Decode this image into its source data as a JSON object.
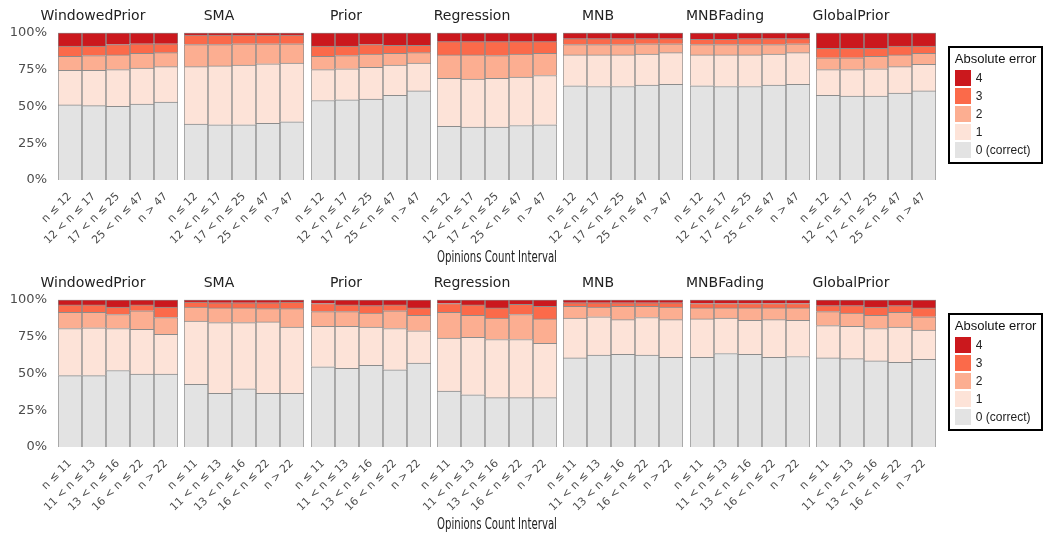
{
  "chart_data": [
    {
      "type": "bar",
      "title": "WindowedPrior",
      "stacked": true,
      "categories": [
        "n ≤ 12",
        "12 < n ≤ 17",
        "17 < n ≤ 25",
        "25 < n ≤ 47",
        "n > 47"
      ],
      "ylim": [
        0,
        100
      ],
      "yticks": [
        {
          "value": 0,
          "label": "0%"
        },
        {
          "value": 25,
          "label": "25%"
        },
        {
          "value": 50,
          "label": "50%"
        },
        {
          "value": 75,
          "label": "75%"
        },
        {
          "value": 100,
          "label": "100%"
        }
      ],
      "series": [
        {
          "color": "#e3e3e3",
          "values": [
            51,
            50.5,
            50,
            51.5,
            53
          ]
        },
        {
          "color": "#fde3d8",
          "values": [
            23.5,
            24,
            25,
            24.5,
            24
          ]
        },
        {
          "color": "#fcae91",
          "values": [
            9.5,
            10,
            10,
            10,
            9.5
          ]
        },
        {
          "color": "#fb6a4a",
          "values": [
            7,
            6.5,
            7,
            6.5,
            6
          ]
        },
        {
          "color": "#cb181d",
          "values": [
            9,
            9,
            8,
            7.5,
            7.5
          ]
        }
      ]
    },
    {
      "type": "bar",
      "title": "SMA",
      "stacked": true,
      "tick_labels": "x",
      "categories": [
        "n ≤ 12",
        "12 < n ≤ 17",
        "17 < n ≤ 25",
        "25 < n ≤ 47",
        "n > 47"
      ],
      "ylim": [
        0,
        100
      ],
      "series": [
        {
          "color": "#e3e3e3",
          "values": [
            38,
            37.5,
            37.5,
            38.5,
            39.5
          ]
        },
        {
          "color": "#fde3d8",
          "values": [
            39,
            40,
            40.5,
            40.5,
            40
          ]
        },
        {
          "color": "#fcae91",
          "values": [
            15,
            14.5,
            14.5,
            13.5,
            13
          ]
        },
        {
          "color": "#fb6a4a",
          "values": [
            6.5,
            6.5,
            6,
            6,
            6
          ]
        },
        {
          "color": "#cb181d",
          "values": [
            1.5,
            1.5,
            1.5,
            1.5,
            1.5
          ]
        }
      ]
    },
    {
      "type": "bar",
      "title": "Prior",
      "stacked": true,
      "tick_labels": "x",
      "categories": [
        "n ≤ 12",
        "12 < n ≤ 17",
        "17 < n ≤ 25",
        "25 < n ≤ 47",
        "n > 47"
      ],
      "ylim": [
        0,
        100
      ],
      "series": [
        {
          "color": "#e3e3e3",
          "values": [
            54,
            54.5,
            55,
            57.5,
            60.5
          ]
        },
        {
          "color": "#fde3d8",
          "values": [
            21,
            21,
            21.5,
            20.5,
            19
          ]
        },
        {
          "color": "#fcae91",
          "values": [
            9,
            9,
            9,
            8,
            7
          ]
        },
        {
          "color": "#fb6a4a",
          "values": [
            7,
            6.5,
            6.5,
            5.5,
            5
          ]
        },
        {
          "color": "#cb181d",
          "values": [
            9,
            9,
            8,
            8.5,
            8.5
          ]
        }
      ]
    },
    {
      "type": "bar",
      "title": "Regression",
      "xlabel": "Opinions Count Interval",
      "stacked": true,
      "tick_labels": "x",
      "categories": [
        "n ≤ 12",
        "12 < n ≤ 17",
        "17 < n ≤ 25",
        "25 < n ≤ 47",
        "n > 47"
      ],
      "ylim": [
        0,
        100
      ],
      "series": [
        {
          "color": "#e3e3e3",
          "values": [
            36.5,
            36,
            36,
            37,
            37.5
          ]
        },
        {
          "color": "#fde3d8",
          "values": [
            32.5,
            32.5,
            33,
            33,
            33.5
          ]
        },
        {
          "color": "#fcae91",
          "values": [
            16,
            16.5,
            15.5,
            15.5,
            15
          ]
        },
        {
          "color": "#fb6a4a",
          "values": [
            9,
            9,
            9.5,
            8.5,
            8
          ]
        },
        {
          "color": "#cb181d",
          "values": [
            6,
            6,
            6,
            6,
            6
          ]
        }
      ]
    },
    {
      "type": "bar",
      "title": "MNB",
      "stacked": true,
      "tick_labels": "x",
      "categories": [
        "n ≤ 12",
        "12 < n ≤ 17",
        "17 < n ≤ 25",
        "25 < n ≤ 47",
        "n > 47"
      ],
      "ylim": [
        0,
        100
      ],
      "series": [
        {
          "color": "#e3e3e3",
          "values": [
            64,
            63.5,
            63.5,
            64.5,
            65
          ]
        },
        {
          "color": "#fde3d8",
          "values": [
            21,
            21.5,
            21.5,
            21,
            21.5
          ]
        },
        {
          "color": "#fcae91",
          "values": [
            7,
            7,
            7,
            7,
            6
          ]
        },
        {
          "color": "#fb6a4a",
          "values": [
            4,
            4,
            4,
            3.5,
            3.5
          ]
        },
        {
          "color": "#cb181d",
          "values": [
            4,
            4,
            4,
            4,
            4
          ]
        }
      ]
    },
    {
      "type": "bar",
      "title": "MNBFading",
      "stacked": true,
      "tick_labels": "x",
      "categories": [
        "n ≤ 12",
        "12 < n ≤ 17",
        "17 < n ≤ 25",
        "25 < n ≤ 47",
        "n > 47"
      ],
      "ylim": [
        0,
        100
      ],
      "series": [
        {
          "color": "#e3e3e3",
          "values": [
            64,
            63.5,
            63.5,
            64.5,
            65
          ]
        },
        {
          "color": "#fde3d8",
          "values": [
            21,
            21.5,
            21.5,
            21,
            21.5
          ]
        },
        {
          "color": "#fcae91",
          "values": [
            7,
            7,
            7,
            6.5,
            6
          ]
        },
        {
          "color": "#fb6a4a",
          "values": [
            3.5,
            3.5,
            4,
            4,
            3.5
          ]
        },
        {
          "color": "#cb181d",
          "values": [
            4.5,
            4.5,
            4,
            4,
            4
          ]
        }
      ]
    },
    {
      "type": "bar",
      "title": "GlobalPrior",
      "legend": "right",
      "legend_title": "Absolute error",
      "stacked": true,
      "tick_labels": "x",
      "categories": [
        "n ≤ 12",
        "12 < n ≤ 17",
        "17 < n ≤ 25",
        "25 < n ≤ 47",
        "n > 47"
      ],
      "ylim": [
        0,
        100
      ],
      "series": [
        {
          "name": "0 (correct)",
          "color": "#e3e3e3",
          "values": [
            57.5,
            57,
            57,
            59,
            60.5
          ]
        },
        {
          "name": "1",
          "color": "#fde3d8",
          "values": [
            17.5,
            18,
            18.5,
            18,
            18
          ]
        },
        {
          "name": "2",
          "color": "#fcae91",
          "values": [
            8,
            8,
            8.5,
            8,
            7.5
          ]
        },
        {
          "name": "3",
          "color": "#fb6a4a",
          "values": [
            6.5,
            6.5,
            5.5,
            6,
            5
          ]
        },
        {
          "name": "4",
          "color": "#cb181d",
          "values": [
            10.5,
            10.5,
            10.5,
            9,
            9
          ]
        }
      ]
    },
    {
      "type": "bar",
      "title": "WindowedPrior",
      "stacked": true,
      "categories": [
        "n ≤ 11",
        "11 < n ≤ 13",
        "13 < n ≤ 16",
        "16 < n ≤ 22",
        "n > 22"
      ],
      "ylim": [
        0,
        100
      ],
      "yticks": [
        {
          "value": 0,
          "label": "0%"
        },
        {
          "value": 25,
          "label": "25%"
        },
        {
          "value": 50,
          "label": "50%"
        },
        {
          "value": 75,
          "label": "75%"
        },
        {
          "value": 100,
          "label": "100%"
        }
      ],
      "series": [
        {
          "color": "#e3e3e3",
          "values": [
            48.5,
            48.5,
            52,
            49.5,
            49.5
          ]
        },
        {
          "color": "#fde3d8",
          "values": [
            32,
            32.5,
            28.5,
            30.5,
            27
          ]
        },
        {
          "color": "#fcae91",
          "values": [
            11,
            10.5,
            9.5,
            12.5,
            11.5
          ]
        },
        {
          "color": "#fb6a4a",
          "values": [
            5,
            5,
            5,
            4,
            7
          ]
        },
        {
          "color": "#cb181d",
          "values": [
            3.5,
            3.5,
            5,
            3.5,
            5
          ]
        }
      ]
    },
    {
      "type": "bar",
      "title": "SMA",
      "stacked": true,
      "tick_labels": "x",
      "categories": [
        "n ≤ 11",
        "11 < n ≤ 13",
        "13 < n ≤ 16",
        "16 < n ≤ 22",
        "n > 22"
      ],
      "ylim": [
        0,
        100
      ],
      "series": [
        {
          "color": "#e3e3e3",
          "values": [
            42.5,
            36.5,
            39.5,
            36.5,
            36.5
          ]
        },
        {
          "color": "#fde3d8",
          "values": [
            43,
            48,
            45,
            48.5,
            45
          ]
        },
        {
          "color": "#fcae91",
          "values": [
            9.5,
            10,
            10,
            9,
            12.5
          ]
        },
        {
          "color": "#fb6a4a",
          "values": [
            3.5,
            3.5,
            3.5,
            4,
            4.5
          ]
        },
        {
          "color": "#cb181d",
          "values": [
            1.5,
            2,
            2,
            2,
            1.5
          ]
        }
      ]
    },
    {
      "type": "bar",
      "title": "Prior",
      "stacked": true,
      "tick_labels": "x",
      "categories": [
        "n ≤ 11",
        "11 < n ≤ 13",
        "13 < n ≤ 16",
        "16 < n ≤ 22",
        "n > 22"
      ],
      "ylim": [
        0,
        100
      ],
      "series": [
        {
          "color": "#e3e3e3",
          "values": [
            54.5,
            53.5,
            55.5,
            52.5,
            57
          ]
        },
        {
          "color": "#fde3d8",
          "values": [
            27.5,
            28.5,
            26,
            28,
            22
          ]
        },
        {
          "color": "#fcae91",
          "values": [
            10,
            10,
            9.5,
            12,
            10.5
          ]
        },
        {
          "color": "#fb6a4a",
          "values": [
            5.5,
            4.5,
            5,
            4,
            5
          ]
        },
        {
          "color": "#cb181d",
          "values": [
            2.5,
            3.5,
            4,
            3.5,
            5.5
          ]
        }
      ]
    },
    {
      "type": "bar",
      "title": "Regression",
      "xlabel": "Opinions Count Interval",
      "stacked": true,
      "tick_labels": "x",
      "categories": [
        "n ≤ 11",
        "11 < n ≤ 13",
        "13 < n ≤ 16",
        "16 < n ≤ 22",
        "n > 22"
      ],
      "ylim": [
        0,
        100
      ],
      "series": [
        {
          "color": "#e3e3e3",
          "values": [
            38,
            35.5,
            33.5,
            33.5,
            33.5
          ]
        },
        {
          "color": "#fde3d8",
          "values": [
            36,
            39,
            39.5,
            39.5,
            37
          ]
        },
        {
          "color": "#fcae91",
          "values": [
            17.5,
            15,
            14.5,
            17,
            16.5
          ]
        },
        {
          "color": "#fb6a4a",
          "values": [
            6,
            7,
            7,
            7,
            8.5
          ]
        },
        {
          "color": "#cb181d",
          "values": [
            2.5,
            3.5,
            5.5,
            3,
            4.5
          ]
        }
      ]
    },
    {
      "type": "bar",
      "title": "MNB",
      "stacked": true,
      "tick_labels": "x",
      "categories": [
        "n ≤ 11",
        "11 < n ≤ 13",
        "13 < n ≤ 16",
        "16 < n ≤ 22",
        "n > 22"
      ],
      "ylim": [
        0,
        100
      ],
      "series": [
        {
          "color": "#e3e3e3",
          "values": [
            60.5,
            62.5,
            63,
            62.5,
            61
          ]
        },
        {
          "color": "#fde3d8",
          "values": [
            27,
            26,
            23.5,
            25.5,
            25.5
          ]
        },
        {
          "color": "#fcae91",
          "values": [
            8,
            6.5,
            9,
            7.5,
            8.5
          ]
        },
        {
          "color": "#fb6a4a",
          "values": [
            2.5,
            3,
            2.5,
            2.5,
            3
          ]
        },
        {
          "color": "#cb181d",
          "values": [
            2,
            2,
            2,
            2,
            2
          ]
        }
      ]
    },
    {
      "type": "bar",
      "title": "MNBFading",
      "stacked": true,
      "tick_labels": "x",
      "categories": [
        "n ≤ 11",
        "11 < n ≤ 13",
        "13 < n ≤ 16",
        "16 < n ≤ 22",
        "n > 22"
      ],
      "ylim": [
        0,
        100
      ],
      "series": [
        {
          "color": "#e3e3e3",
          "values": [
            61,
            63.5,
            63,
            61,
            61.5
          ]
        },
        {
          "color": "#fde3d8",
          "values": [
            26,
            24,
            23,
            25.5,
            24.5
          ]
        },
        {
          "color": "#fcae91",
          "values": [
            7.5,
            7,
            8.5,
            8,
            8.5
          ]
        },
        {
          "color": "#fb6a4a",
          "values": [
            3,
            3,
            3,
            3,
            3
          ]
        },
        {
          "color": "#cb181d",
          "values": [
            2.5,
            2.5,
            2.5,
            2.5,
            2.5
          ]
        }
      ]
    },
    {
      "type": "bar",
      "title": "GlobalPrior",
      "legend": "right",
      "legend_title": "Absolute error",
      "stacked": true,
      "tick_labels": "x",
      "categories": [
        "n ≤ 11",
        "11 < n ≤ 13",
        "13 < n ≤ 16",
        "16 < n ≤ 22",
        "n > 22"
      ],
      "ylim": [
        0,
        100
      ],
      "series": [
        {
          "name": "0 (correct)",
          "color": "#e3e3e3",
          "values": [
            60.5,
            60,
            58.5,
            57.5,
            59.5
          ]
        },
        {
          "name": "1",
          "color": "#fde3d8",
          "values": [
            22,
            22,
            22,
            24,
            20
          ]
        },
        {
          "name": "2",
          "color": "#fcae91",
          "values": [
            9.5,
            9,
            9,
            10,
            9
          ]
        },
        {
          "name": "3",
          "color": "#fb6a4a",
          "values": [
            4,
            5,
            5.5,
            4.5,
            6
          ]
        },
        {
          "name": "4",
          "color": "#cb181d",
          "values": [
            4,
            4,
            5,
            4,
            5.5
          ]
        }
      ]
    }
  ]
}
